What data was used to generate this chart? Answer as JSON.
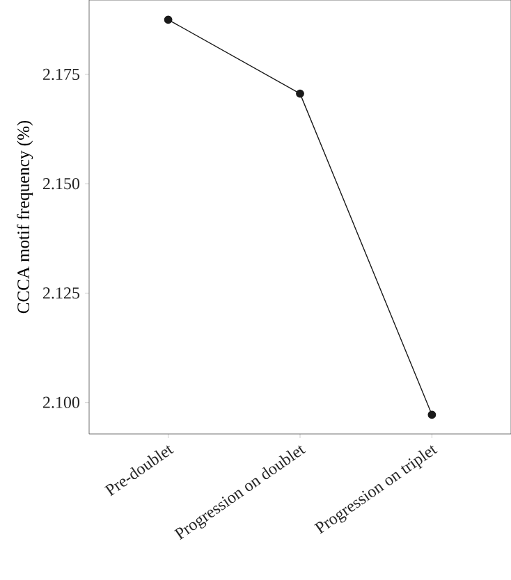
{
  "chart_data": {
    "type": "line",
    "ylabel": "CCCA motif frequency (%)",
    "categories": [
      "Pre-doublet",
      "Progression on doublet",
      "Progression on triplet"
    ],
    "values": [
      2.1875,
      2.1706,
      2.0972
    ],
    "color": "#1a1a1a",
    "marker": "circle",
    "line_style": "solid",
    "ylim": [
      2.0928,
      2.192
    ],
    "yticks": [
      {
        "value": 2.1,
        "label": "2.100"
      },
      {
        "value": 2.125,
        "label": "2.125"
      },
      {
        "value": 2.15,
        "label": "2.150"
      },
      {
        "value": 2.175,
        "label": "2.175"
      }
    ]
  }
}
